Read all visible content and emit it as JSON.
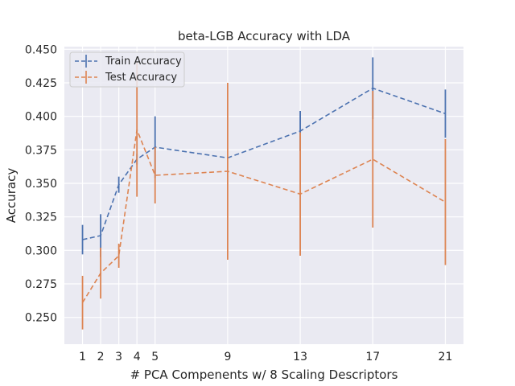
{
  "chart_data": {
    "type": "line",
    "title": "beta-LGB Accuracy with LDA",
    "xlabel": "# PCA Compenents w/ 8 Scaling Descriptors",
    "ylabel": "Accuracy",
    "x": [
      1,
      2,
      3,
      4,
      5,
      9,
      13,
      17,
      21
    ],
    "xlim": [
      0,
      22
    ],
    "ylim": [
      0.23,
      0.452
    ],
    "yticks": [
      0.25,
      0.275,
      0.3,
      0.325,
      0.35,
      0.375,
      0.4,
      0.425,
      0.45
    ],
    "ytick_labels": [
      "0.250",
      "0.275",
      "0.300",
      "0.325",
      "0.350",
      "0.375",
      "0.400",
      "0.425",
      "0.450"
    ],
    "grid": true,
    "legend_position": "top-left",
    "series": [
      {
        "name": "Train Accuracy",
        "color": "#4c72b0",
        "linestyle": "dashed",
        "values": [
          0.308,
          0.311,
          0.349,
          0.368,
          0.377,
          0.369,
          0.389,
          0.421,
          0.402
        ],
        "errors": [
          0.011,
          0.016,
          0.006,
          0.004,
          0.023,
          0.0,
          0.015,
          0.023,
          0.018
        ]
      },
      {
        "name": "Test Accuracy",
        "color": "#dd8452",
        "linestyle": "dashed",
        "values": [
          0.261,
          0.283,
          0.296,
          0.39,
          0.356,
          0.359,
          0.342,
          0.368,
          0.336
        ],
        "errors": [
          0.02,
          0.019,
          0.009,
          0.05,
          0.021,
          0.066,
          0.046,
          0.051,
          0.047
        ]
      }
    ]
  }
}
